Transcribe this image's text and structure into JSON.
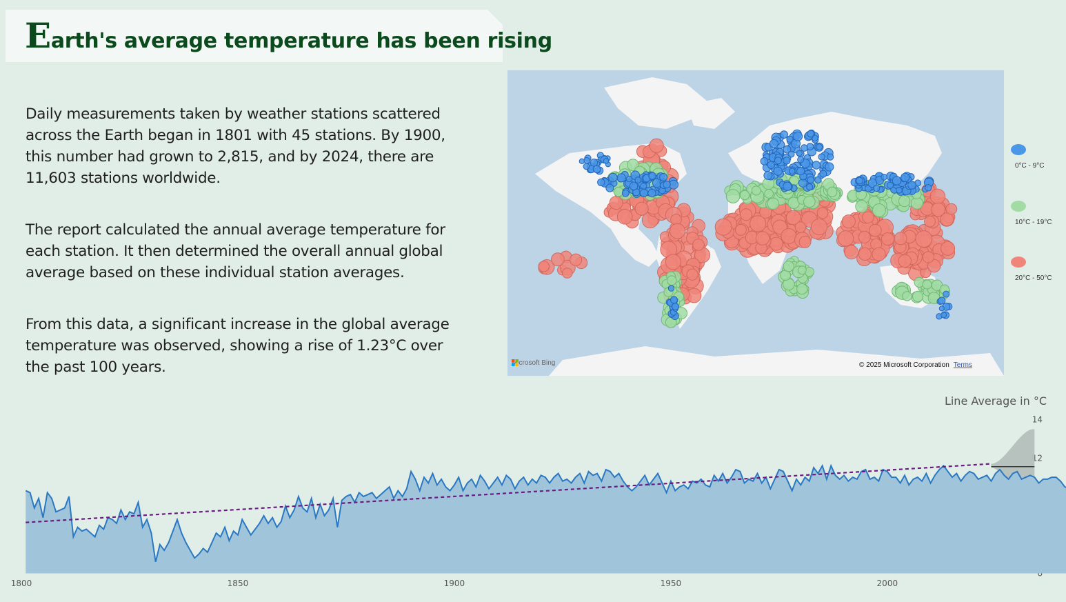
{
  "header": {
    "title_initial": "E",
    "title_rest": "arth's average temperature has been rising"
  },
  "paragraphs": [
    "Daily measurements taken by weather stations scattered across the Earth began in 1801 with 45 stations. By 1900, this number had grown to 2,815, and by 2024, there are 11,603 stations worldwide.",
    "The report calculated the annual average temperature for each station. It then determined the overall annual global average based on these individual station averages.",
    "From this data, a significant increase in the global average temperature was observed, showing a rise of 1.23°C over the past 100 years."
  ],
  "map": {
    "attribution_left": "Microsoft Bing",
    "copyright": "© 2025 Microsoft Corporation",
    "terms_label": "Terms",
    "water_color": "#bdd3e6",
    "land_color": "#f4f4f4",
    "legend": [
      {
        "label": "0°C - 9°C",
        "color": "#4a97e8"
      },
      {
        "label": "10°C - 19°C",
        "color": "#a2dca4"
      },
      {
        "label": "20°C - 50°C",
        "color": "#f0857a"
      }
    ]
  },
  "chart_data": {
    "type": "area",
    "ylabel": "Line Average in °C",
    "xlim": [
      1800,
      2040
    ],
    "ylim": [
      6,
      14
    ],
    "xticks": [
      1800,
      1850,
      1900,
      1950,
      2000
    ],
    "yticks": [
      6,
      8,
      10,
      12,
      14
    ],
    "area_color": "#a0c4da",
    "line_color": "#2a78c2",
    "trend_color": "#6a1a80",
    "forecast_band_color": "#b7c2bf",
    "start_year": 1801,
    "values": [
      10.3,
      10.2,
      9.4,
      9.9,
      8.9,
      10.2,
      9.9,
      9.2,
      9.3,
      9.4,
      10.0,
      7.9,
      8.4,
      8.2,
      8.3,
      8.1,
      7.9,
      8.5,
      8.3,
      8.9,
      8.8,
      8.6,
      9.3,
      8.8,
      9.2,
      9.1,
      9.7,
      8.4,
      8.8,
      8.1,
      6.6,
      7.5,
      7.2,
      7.6,
      8.2,
      8.8,
      8.1,
      7.6,
      7.2,
      6.8,
      7.0,
      7.3,
      7.1,
      7.6,
      8.1,
      7.9,
      8.4,
      7.7,
      8.2,
      8.0,
      8.8,
      8.4,
      8.0,
      8.3,
      8.6,
      9.0,
      8.6,
      8.9,
      8.4,
      8.7,
      9.5,
      8.9,
      9.3,
      10.0,
      9.4,
      9.2,
      9.9,
      8.9,
      9.6,
      9.0,
      9.3,
      9.9,
      8.4,
      9.8,
      10.0,
      10.1,
      9.7,
      10.2,
      10.0,
      10.1,
      10.2,
      9.9,
      10.1,
      10.3,
      10.5,
      9.9,
      10.3,
      10.0,
      10.4,
      11.3,
      10.9,
      10.3,
      11.0,
      10.7,
      11.2,
      10.6,
      10.9,
      10.5,
      10.3,
      10.6,
      11.0,
      10.3,
      10.7,
      10.9,
      10.5,
      11.1,
      10.8,
      10.4,
      10.7,
      11.0,
      10.6,
      11.1,
      10.9,
      10.4,
      10.8,
      11.0,
      10.6,
      10.9,
      10.7,
      11.1,
      11.0,
      10.7,
      11.0,
      11.2,
      10.8,
      10.9,
      10.7,
      11.0,
      11.2,
      10.7,
      11.3,
      11.1,
      11.2,
      10.8,
      11.4,
      11.3,
      11.0,
      11.2,
      10.8,
      10.5,
      10.3,
      10.5,
      10.8,
      11.1,
      10.6,
      10.9,
      11.2,
      10.7,
      10.2,
      10.8,
      10.3,
      10.5,
      10.6,
      10.4,
      10.8,
      10.7,
      10.9,
      10.6,
      10.5,
      11.1,
      10.8,
      11.2,
      10.7,
      11.0,
      11.4,
      11.3,
      10.7,
      10.9,
      10.8,
      11.2,
      10.7,
      11.0,
      10.4,
      10.9,
      11.4,
      11.3,
      10.8,
      10.3,
      10.9,
      10.6,
      11.0,
      10.8,
      11.5,
      11.2,
      11.6,
      10.9,
      11.6,
      11.1,
      10.9,
      11.1,
      10.8,
      11.0,
      10.9,
      11.3,
      11.4,
      10.9,
      11.0,
      10.8,
      11.4,
      11.3,
      11.0,
      11.0,
      10.7,
      11.1,
      10.6,
      10.9,
      11.0,
      10.8,
      11.2,
      10.7,
      11.1,
      11.4,
      11.6,
      11.3,
      11.0,
      11.2,
      10.8,
      11.1,
      11.3,
      11.2,
      10.9,
      11.0,
      11.1,
      10.8,
      11.2,
      11.4,
      11.1,
      10.9,
      11.2,
      11.3,
      10.9,
      11.0,
      11.1,
      11.0,
      10.7,
      10.9,
      10.9,
      11.0,
      11.0,
      10.8,
      10.5,
      10.4,
      10.7,
      10.6,
      10.9,
      10.7,
      10.5,
      10.8,
      10.6,
      10.3,
      10.5,
      10.8,
      10.6,
      10.9,
      10.5,
      10.6,
      10.4,
      10.7,
      10.9,
      10.5,
      10.6,
      10.3,
      10.8,
      10.2,
      10.7,
      10.5,
      10.9,
      10.6,
      10.4,
      10.8,
      10.2,
      10.6,
      10.9,
      10.5,
      10.7,
      10.8,
      10.4,
      10.7,
      10.3,
      10.8,
      10.5,
      10.6,
      10.2,
      10.9,
      10.7,
      10.4,
      10.9,
      10.3,
      10.8,
      10.5,
      11.0,
      11.3,
      10.7,
      11.1,
      11.0,
      11.3,
      11.2,
      11.4,
      11.0,
      11.3,
      11.0,
      10.8,
      11.1,
      11.2,
      11.4,
      11.2,
      11.0,
      11.4,
      11.3,
      11.0,
      11.4,
      11.5,
      10.9,
      11.6,
      11.1,
      11.5,
      11.7,
      11.2,
      11.0,
      10.7,
      11.3,
      11.6,
      11.5,
      11.0,
      10.8,
      11.3,
      11.4,
      11.2,
      11.0,
      11.5,
      11.7,
      11.4,
      11.6,
      11.3
    ],
    "trend": {
      "start": [
        1801,
        8.65
      ],
      "end": [
        2024,
        11.7
      ]
    },
    "forecast": {
      "years": [
        2024,
        2034
      ],
      "line_value": 11.55,
      "upper": [
        11.7,
        13.5
      ],
      "lower": [
        11.5,
        9.3
      ]
    }
  }
}
